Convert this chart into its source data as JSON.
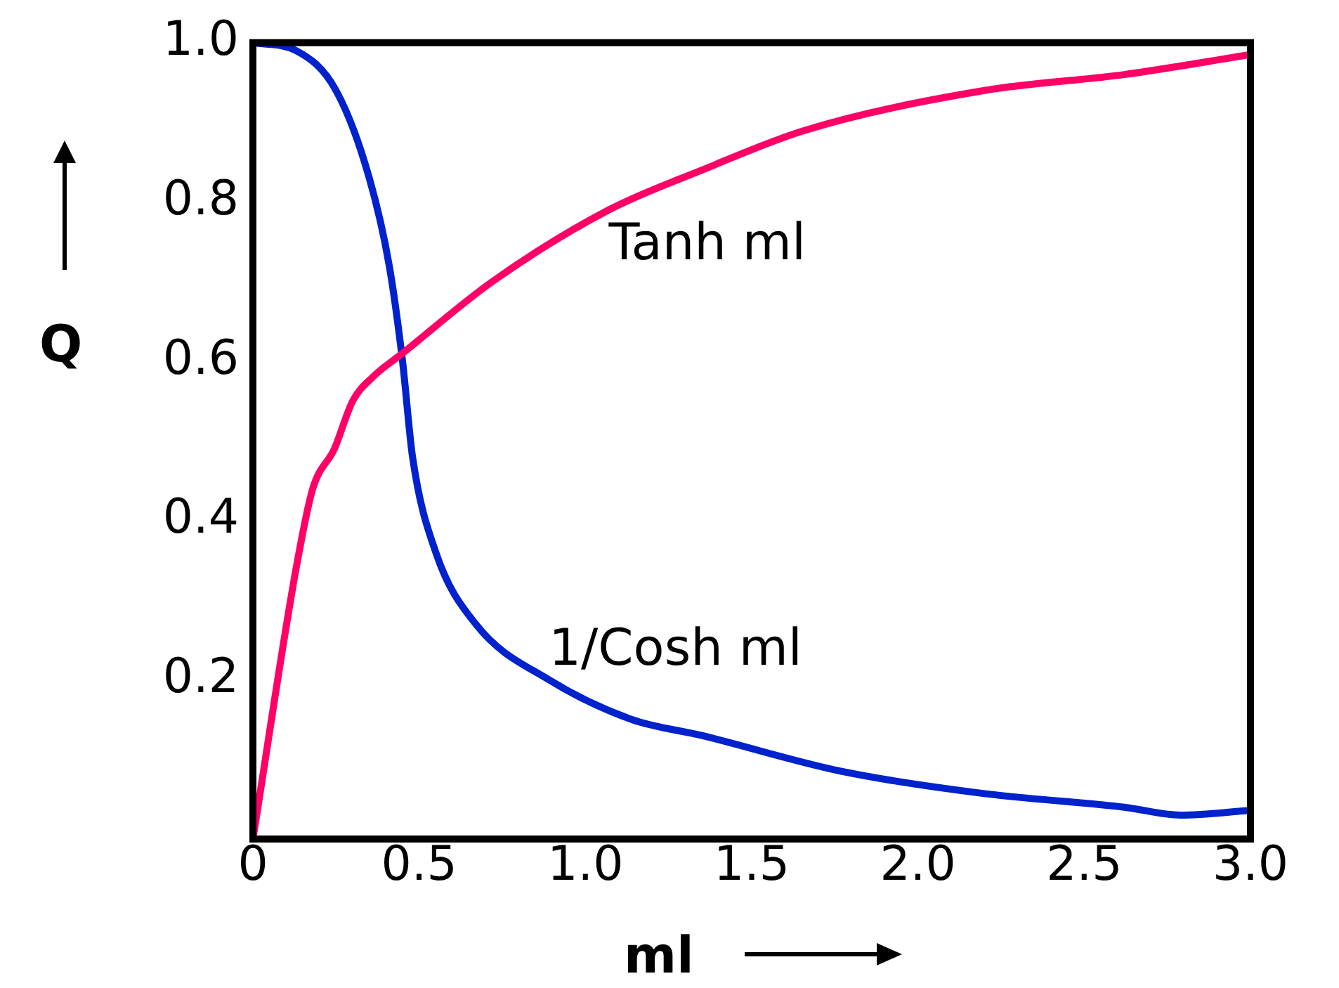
{
  "chart_data": {
    "type": "line",
    "xlabel": "ml",
    "ylabel": "Q",
    "xlim": [
      0,
      3
    ],
    "ylim": [
      0,
      1
    ],
    "xticks": [
      0,
      {
        "value": 0.5,
        "label": "0.5"
      },
      {
        "value": 1,
        "label": "1.0"
      },
      {
        "value": 1.5,
        "label": "1.5"
      },
      {
        "value": 2,
        "label": "2.0"
      },
      {
        "value": 2.5,
        "label": "2.5"
      },
      {
        "value": 3,
        "label": "3.0"
      }
    ],
    "yticks": [
      0.2,
      0.4,
      0.6,
      0.8,
      {
        "value": 1,
        "label": "1.0"
      }
    ],
    "grid": false,
    "legend": false,
    "marker": "none",
    "line_style": "solid",
    "series": [
      {
        "name": "Tanh ml",
        "color": "#ff0066",
        "x": [
          0,
          0.13,
          0.18,
          0.245,
          0.3,
          0.36,
          0.45,
          0.72,
          1.07,
          1.35,
          1.66,
          2.2,
          2.62,
          3.0
        ],
        "values": [
          0,
          0.34,
          0.44,
          0.49,
          0.55,
          0.58,
          0.61,
          0.7,
          0.79,
          0.84,
          0.89,
          0.94,
          0.96,
          0.985
        ]
      },
      {
        "name": "1/Cosh ml",
        "color": "#0022cc",
        "x": [
          0,
          0.13,
          0.25,
          0.35,
          0.41,
          0.45,
          0.48,
          0.55,
          0.67,
          0.89,
          1.14,
          1.35,
          1.77,
          2.2,
          2.62,
          2.79,
          3.0
        ],
        "values": [
          1,
          0.99,
          0.94,
          0.83,
          0.72,
          0.6,
          0.48,
          0.36,
          0.27,
          0.2,
          0.15,
          0.13,
          0.085,
          0.057,
          0.04,
          0.03,
          0.036
        ]
      }
    ]
  }
}
